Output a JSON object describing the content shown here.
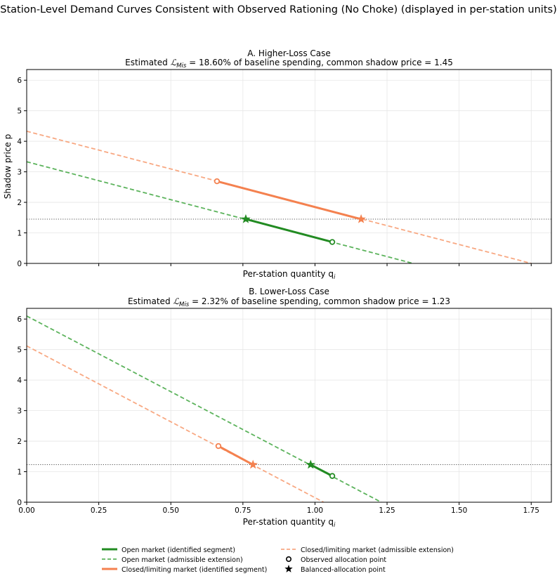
{
  "figure": {
    "suptitle": "Station-Level Demand Curves Consistent with Observed Rationing (No Choke) (displayed in per-station units)"
  },
  "colors": {
    "open": "#228B22",
    "open_ext": "#5cb35c",
    "closed": "#f4814f",
    "closed_ext": "#f8a882",
    "shadow_line": "#555555",
    "grid": "#e6e6e6"
  },
  "chart_data": [
    {
      "type": "line",
      "panel": "A",
      "title_line1": "A. Higher-Loss Case",
      "title_line2_prefix": "Estimated ",
      "title_math": "Mis",
      "title_line2_suffix": " = 18.60% of baseline spending, common shadow price = 1.45",
      "xlabel": "Per-station quantity q",
      "xlabel_sub": "i",
      "ylabel": "Shadow price p",
      "xlim": [
        0,
        1.82
      ],
      "ylim": [
        0,
        6.35
      ],
      "xticks": [
        0.0,
        0.25,
        0.5,
        0.75,
        1.0,
        1.25,
        1.5,
        1.75
      ],
      "xtick_labels_visible": false,
      "yticks": [
        0,
        1,
        2,
        3,
        4,
        5,
        6
      ],
      "ytick_labels": [
        "0",
        "1",
        "2",
        "3",
        "4",
        "5",
        "6"
      ],
      "grid": true,
      "shadow_price": 1.45,
      "series": [
        {
          "name": "Open market (admissible extension)",
          "role": "open_ext",
          "x": [
            0.0,
            1.34
          ],
          "y": [
            3.33,
            0.0
          ]
        },
        {
          "name": "Closed/limiting market (admissible extension)",
          "role": "closed_ext",
          "x": [
            0.0,
            1.75
          ],
          "y": [
            4.33,
            0.0
          ]
        },
        {
          "name": "Open market (identified segment)",
          "role": "open",
          "x": [
            0.76,
            1.06
          ],
          "y": [
            1.45,
            0.7
          ]
        },
        {
          "name": "Closed/limiting market (identified segment)",
          "role": "closed",
          "x": [
            0.66,
            1.16
          ],
          "y": [
            2.69,
            1.45
          ]
        }
      ],
      "observed_points": [
        {
          "role": "open",
          "x": 1.06,
          "y": 0.7
        },
        {
          "role": "closed",
          "x": 0.66,
          "y": 2.69
        }
      ],
      "balanced_points": [
        {
          "role": "open",
          "x": 0.76,
          "y": 1.45
        },
        {
          "role": "closed",
          "x": 1.16,
          "y": 1.45
        }
      ]
    },
    {
      "type": "line",
      "panel": "B",
      "title_line1": "B. Lower-Loss Case",
      "title_line2_prefix": "Estimated ",
      "title_math": "Mis",
      "title_line2_suffix": " = 2.32% of baseline spending, common shadow price = 1.23",
      "xlabel": "Per-station quantity q",
      "xlabel_sub": "i",
      "ylabel": "",
      "xlim": [
        0,
        1.82
      ],
      "ylim": [
        0,
        6.35
      ],
      "xticks": [
        0.0,
        0.25,
        0.5,
        0.75,
        1.0,
        1.25,
        1.5,
        1.75
      ],
      "xtick_labels": [
        "0.00",
        "0.25",
        "0.50",
        "0.75",
        "1.00",
        "1.25",
        "1.50",
        "1.75"
      ],
      "yticks": [
        0,
        1,
        2,
        3,
        4,
        5,
        6
      ],
      "ytick_labels": [
        "0",
        "1",
        "2",
        "3",
        "4",
        "5",
        "6"
      ],
      "grid": true,
      "shadow_price": 1.23,
      "series": [
        {
          "name": "Open market (admissible extension)",
          "role": "open_ext",
          "x": [
            0.0,
            1.23
          ],
          "y": [
            6.1,
            0.0
          ]
        },
        {
          "name": "Closed/limiting market (admissible extension)",
          "role": "closed_ext",
          "x": [
            0.0,
            1.03
          ],
          "y": [
            5.12,
            0.0
          ]
        },
        {
          "name": "Open market (identified segment)",
          "role": "open",
          "x": [
            0.985,
            1.06
          ],
          "y": [
            1.23,
            0.86
          ]
        },
        {
          "name": "Closed/limiting market (identified segment)",
          "role": "closed",
          "x": [
            0.665,
            0.785
          ],
          "y": [
            1.84,
            1.23
          ]
        }
      ],
      "observed_points": [
        {
          "role": "open",
          "x": 1.06,
          "y": 0.86
        },
        {
          "role": "closed",
          "x": 0.665,
          "y": 1.84
        }
      ],
      "balanced_points": [
        {
          "role": "open",
          "x": 0.985,
          "y": 1.23
        },
        {
          "role": "closed",
          "x": 0.785,
          "y": 1.23
        }
      ]
    }
  ],
  "legend": {
    "placement": "bottom-center",
    "items": [
      {
        "label": "Open market (identified segment)",
        "kind": "line",
        "role": "open"
      },
      {
        "label": "Open market (admissible extension)",
        "kind": "dash",
        "role": "open_ext"
      },
      {
        "label": "Closed/limiting market (identified segment)",
        "kind": "line",
        "role": "closed"
      },
      {
        "label": "Closed/limiting market (admissible extension)",
        "kind": "dash",
        "role": "closed_ext"
      },
      {
        "label": "Observed allocation point",
        "kind": "circle",
        "role": "black"
      },
      {
        "label": "Balanced-allocation point",
        "kind": "star",
        "role": "black"
      }
    ]
  }
}
